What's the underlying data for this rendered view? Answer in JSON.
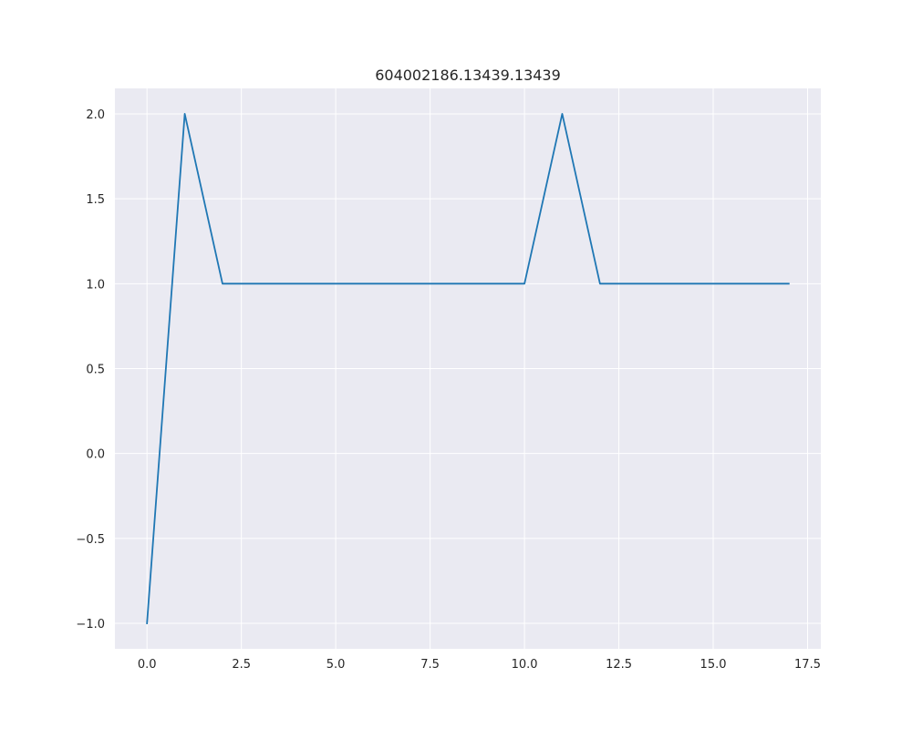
{
  "chart_data": {
    "type": "line",
    "title": "604002186.13439.13439",
    "xlabel": "",
    "ylabel": "",
    "xlim": [
      -0.85,
      17.85
    ],
    "ylim": [
      -1.15,
      2.15
    ],
    "xticks": [
      0.0,
      2.5,
      5.0,
      7.5,
      10.0,
      12.5,
      15.0,
      17.5
    ],
    "xtick_labels": [
      "0.0",
      "2.5",
      "5.0",
      "7.5",
      "10.0",
      "12.5",
      "15.0",
      "17.5"
    ],
    "yticks": [
      -1.0,
      -0.5,
      0.0,
      0.5,
      1.0,
      1.5,
      2.0
    ],
    "ytick_labels": [
      "−1.0",
      "−0.5",
      "0.0",
      "0.5",
      "1.0",
      "1.5",
      "2.0"
    ],
    "grid": true,
    "legend": "none",
    "series": [
      {
        "x": [
          0,
          1,
          2,
          3,
          4,
          5,
          6,
          7,
          8,
          9,
          10,
          11,
          12,
          13,
          14,
          15,
          16,
          17
        ],
        "y": [
          -1,
          2,
          1,
          1,
          1,
          1,
          1,
          1,
          1,
          1,
          1,
          2,
          1,
          1,
          1,
          1,
          1,
          1
        ],
        "color": "#1f77b4"
      }
    ],
    "colors": {
      "plot_background": "#eaeaf2",
      "grid": "#ffffff",
      "text": "#262626"
    }
  }
}
